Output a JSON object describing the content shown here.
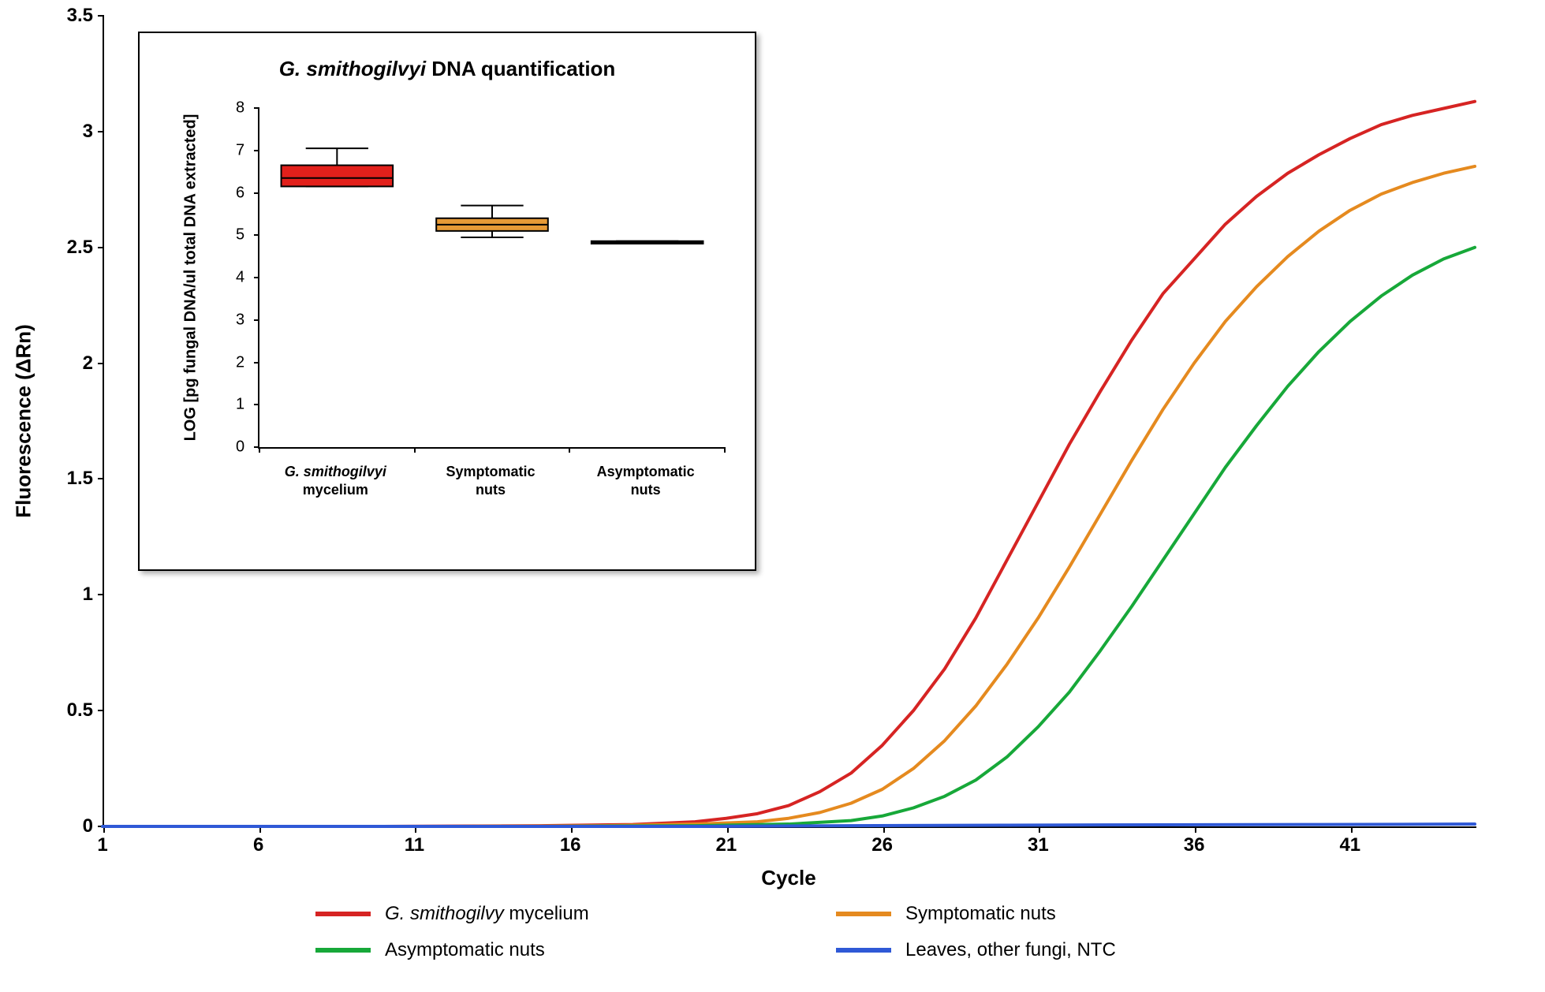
{
  "main_chart": {
    "type": "line",
    "x_axis": {
      "title": "Cycle",
      "min": 1,
      "max": 45,
      "tick_start": 1,
      "tick_step": 5,
      "tick_labels": [
        "1",
        "6",
        "11",
        "16",
        "21",
        "26",
        "31",
        "36",
        "41"
      ],
      "title_fontsize": 26,
      "tick_fontsize": 24
    },
    "y_axis": {
      "title": "Fluorescence (ΔRn)",
      "min": 0,
      "max": 3.5,
      "tick_step": 0.5,
      "tick_labels": [
        "0",
        "0.5",
        "1",
        "1.5",
        "2",
        "2.5",
        "3",
        "3.5"
      ],
      "title_fontsize": 26,
      "tick_fontsize": 24
    },
    "line_width": 4,
    "series": [
      {
        "name": "mycelium",
        "legend_label_html": "<span class='ital'>G. smithogilvy</span> mycelium",
        "color": "#d62423",
        "points": [
          [
            1,
            0
          ],
          [
            5,
            0
          ],
          [
            10,
            0
          ],
          [
            15,
            0.003
          ],
          [
            18,
            0.008
          ],
          [
            20,
            0.02
          ],
          [
            21,
            0.035
          ],
          [
            22,
            0.055
          ],
          [
            23,
            0.09
          ],
          [
            24,
            0.15
          ],
          [
            25,
            0.23
          ],
          [
            26,
            0.35
          ],
          [
            27,
            0.5
          ],
          [
            28,
            0.68
          ],
          [
            29,
            0.9
          ],
          [
            30,
            1.15
          ],
          [
            31,
            1.4
          ],
          [
            32,
            1.65
          ],
          [
            33,
            1.88
          ],
          [
            34,
            2.1
          ],
          [
            35,
            2.3
          ],
          [
            36,
            2.45
          ],
          [
            37,
            2.6
          ],
          [
            38,
            2.72
          ],
          [
            39,
            2.82
          ],
          [
            40,
            2.9
          ],
          [
            41,
            2.97
          ],
          [
            42,
            3.03
          ],
          [
            43,
            3.07
          ],
          [
            44,
            3.1
          ],
          [
            45,
            3.13
          ]
        ]
      },
      {
        "name": "symptomatic",
        "legend_label_html": "Symptomatic nuts",
        "color": "#e58a1f",
        "points": [
          [
            1,
            0
          ],
          [
            5,
            0
          ],
          [
            12,
            0
          ],
          [
            17,
            0.003
          ],
          [
            20,
            0.01
          ],
          [
            22,
            0.02
          ],
          [
            23,
            0.035
          ],
          [
            24,
            0.06
          ],
          [
            25,
            0.1
          ],
          [
            26,
            0.16
          ],
          [
            27,
            0.25
          ],
          [
            28,
            0.37
          ],
          [
            29,
            0.52
          ],
          [
            30,
            0.7
          ],
          [
            31,
            0.9
          ],
          [
            32,
            1.12
          ],
          [
            33,
            1.35
          ],
          [
            34,
            1.58
          ],
          [
            35,
            1.8
          ],
          [
            36,
            2.0
          ],
          [
            37,
            2.18
          ],
          [
            38,
            2.33
          ],
          [
            39,
            2.46
          ],
          [
            40,
            2.57
          ],
          [
            41,
            2.66
          ],
          [
            42,
            2.73
          ],
          [
            43,
            2.78
          ],
          [
            44,
            2.82
          ],
          [
            45,
            2.85
          ]
        ]
      },
      {
        "name": "asymptomatic",
        "legend_label_html": "Asymptomatic nuts",
        "color": "#17a839",
        "points": [
          [
            1,
            0
          ],
          [
            8,
            0
          ],
          [
            15,
            0
          ],
          [
            20,
            0.003
          ],
          [
            23,
            0.01
          ],
          [
            25,
            0.025
          ],
          [
            26,
            0.045
          ],
          [
            27,
            0.08
          ],
          [
            28,
            0.13
          ],
          [
            29,
            0.2
          ],
          [
            30,
            0.3
          ],
          [
            31,
            0.43
          ],
          [
            32,
            0.58
          ],
          [
            33,
            0.76
          ],
          [
            34,
            0.95
          ],
          [
            35,
            1.15
          ],
          [
            36,
            1.35
          ],
          [
            37,
            1.55
          ],
          [
            38,
            1.73
          ],
          [
            39,
            1.9
          ],
          [
            40,
            2.05
          ],
          [
            41,
            2.18
          ],
          [
            42,
            2.29
          ],
          [
            43,
            2.38
          ],
          [
            44,
            2.45
          ],
          [
            45,
            2.5
          ]
        ]
      },
      {
        "name": "control",
        "legend_label_html": "Leaves, other fungi, NTC",
        "color": "#2f59d6",
        "points": [
          [
            1,
            0
          ],
          [
            10,
            0
          ],
          [
            20,
            0
          ],
          [
            25,
            0.003
          ],
          [
            30,
            0.005
          ],
          [
            35,
            0.007
          ],
          [
            40,
            0.008
          ],
          [
            45,
            0.01
          ]
        ]
      }
    ],
    "background_color": "#ffffff",
    "axis_color": "#000000"
  },
  "legend": {
    "items": [
      {
        "color": "#d62423",
        "label_html": "<span class='ital'>G. smithogilvy</span> mycelium"
      },
      {
        "color": "#e58a1f",
        "label_html": "Symptomatic nuts"
      },
      {
        "color": "#17a839",
        "label_html": "Asymptomatic nuts"
      },
      {
        "color": "#2f59d6",
        "label_html": "Leaves, other fungi, NTC"
      }
    ],
    "swatch_width": 70,
    "swatch_height": 6,
    "fontsize": 24
  },
  "inset": {
    "type": "boxplot",
    "title_html": "<span class='ital'>G. smithogilvyi</span> DNA quantification",
    "title_fontsize": 26,
    "y_axis": {
      "title": "LOG [pg fungal DNA/ul total DNA extracted]",
      "min": 0,
      "max": 8,
      "tick_step": 1,
      "tick_labels": [
        "0",
        "1",
        "2",
        "3",
        "4",
        "5",
        "6",
        "7",
        "8"
      ],
      "title_fontsize": 20,
      "tick_fontsize": 20
    },
    "categories": [
      {
        "label_html": "<span class='ital'>G. smithogilvyi</span><br>mycelium"
      },
      {
        "label_html": "Symptomatic<br>nuts"
      },
      {
        "label_html": "Asymptomatic<br>nuts"
      }
    ],
    "boxes": [
      {
        "category_index": 0,
        "fill_color": "#e2201b",
        "stroke_color": "#000000",
        "q1": 6.15,
        "median": 6.35,
        "q3": 6.65,
        "whisker_low": 6.15,
        "whisker_high": 7.05,
        "box_rel_width": 0.72
      },
      {
        "category_index": 1,
        "fill_color": "#e79a36",
        "stroke_color": "#000000",
        "q1": 5.1,
        "median": 5.25,
        "q3": 5.4,
        "whisker_low": 4.95,
        "whisker_high": 5.7,
        "box_rel_width": 0.72
      },
      {
        "category_index": 2,
        "fill_color": "#e79a36",
        "stroke_color": "#000000",
        "q1": 4.8,
        "median": 4.83,
        "q3": 4.86,
        "whisker_low": 4.8,
        "whisker_high": 4.86,
        "box_rel_width": 0.72
      }
    ],
    "line_width": 2,
    "background_color": "#ffffff"
  }
}
